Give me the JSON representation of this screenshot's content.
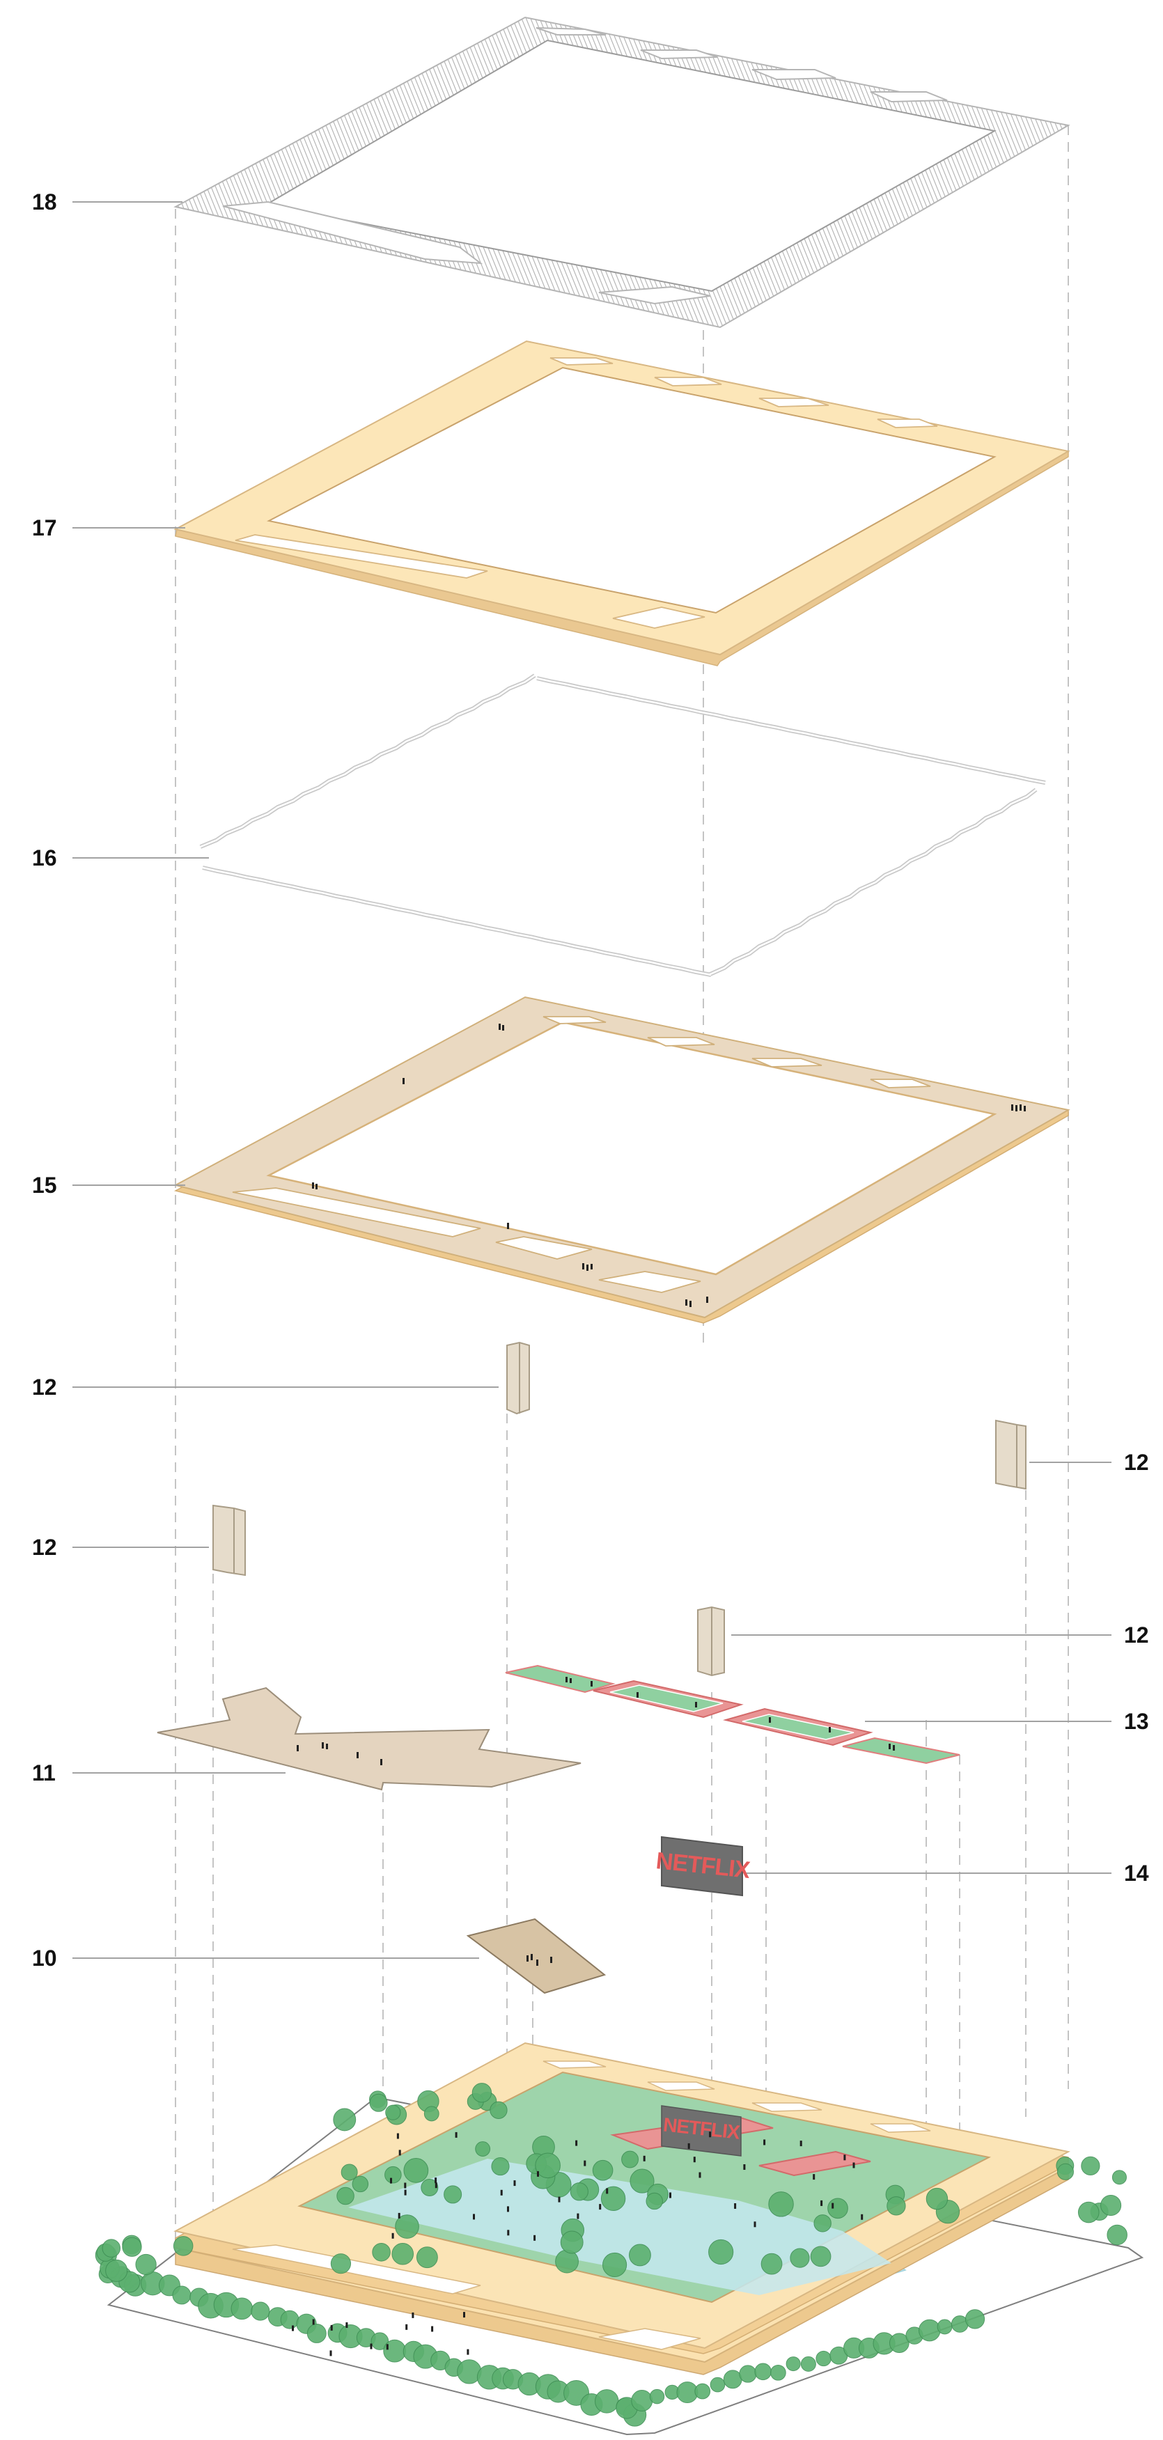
{
  "colors": {
    "roof_grating": "#b9b9b9",
    "slab": "#fbe3b4",
    "slab_edge": "#e6c793",
    "terrace_paving": "#e8d9c2",
    "bench": "#d6cbb8",
    "court_green": "#8ccf9a",
    "court_red": "#e88c8c",
    "landscape_green": "#8fcf9e",
    "tree_green": "#4fa864",
    "water": "#bfe6ee",
    "sign_bg": "#6d6d6d",
    "sign_text": "#e35a5a",
    "leader": "#9a9a9a",
    "dash": "#bdbdbd"
  },
  "sign": {
    "text": "NETFLIX"
  },
  "callouts": [
    {
      "id": "18",
      "label": "18"
    },
    {
      "id": "17",
      "label": "17"
    },
    {
      "id": "16",
      "label": "16"
    },
    {
      "id": "15",
      "label": "15"
    },
    {
      "id": "12a",
      "label": "12"
    },
    {
      "id": "12b",
      "label": "12"
    },
    {
      "id": "12c",
      "label": "12"
    },
    {
      "id": "12d",
      "label": "12"
    },
    {
      "id": "13",
      "label": "13"
    },
    {
      "id": "11",
      "label": "11"
    },
    {
      "id": "14",
      "label": "14"
    },
    {
      "id": "10",
      "label": "10"
    }
  ]
}
